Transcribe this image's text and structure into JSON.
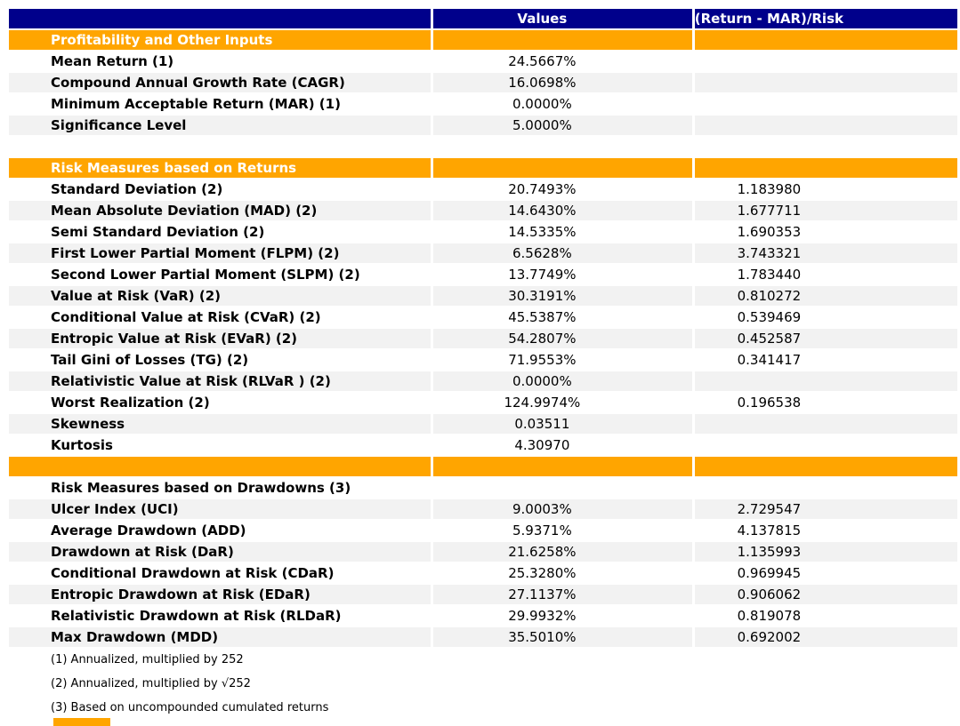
{
  "colors": {
    "header_bg": "#00008b",
    "header_text": "#ffffff",
    "section_bg": "#ffa500",
    "section_text": "#ffffff",
    "stripe_bg": "#f2f2f2",
    "text": "#000000",
    "page_bg": "#ffffff"
  },
  "chart_data": {
    "type": "table",
    "columns": [
      "",
      "Values",
      "(Return - MAR)/Risk"
    ],
    "rows": [
      {
        "kind": "section",
        "shade": "section",
        "label": "Profitability and Other Inputs",
        "value": "",
        "ratio": ""
      },
      {
        "kind": "data",
        "shade": "white",
        "label": "Mean Return (1)",
        "value": "24.5667%",
        "ratio": ""
      },
      {
        "kind": "data",
        "shade": "gray",
        "label": "Compound Annual Growth Rate (CAGR)",
        "value": "16.0698%",
        "ratio": ""
      },
      {
        "kind": "data",
        "shade": "white",
        "label": "Minimum Acceptable Return (MAR) (1)",
        "value": "0.0000%",
        "ratio": ""
      },
      {
        "kind": "data",
        "shade": "gray",
        "label": "Significance Level",
        "value": "5.0000%",
        "ratio": ""
      },
      {
        "kind": "spacer",
        "shade": "spacer",
        "label": "",
        "value": "",
        "ratio": ""
      },
      {
        "kind": "section",
        "shade": "section",
        "label": "Risk Measures based on Returns",
        "value": "",
        "ratio": ""
      },
      {
        "kind": "data",
        "shade": "white",
        "label": "Standard Deviation (2)",
        "value": "20.7493%",
        "ratio": "1.183980"
      },
      {
        "kind": "data",
        "shade": "gray",
        "label": "Mean Absolute Deviation (MAD) (2)",
        "value": "14.6430%",
        "ratio": "1.677711"
      },
      {
        "kind": "data",
        "shade": "white",
        "label": "Semi Standard Deviation (2)",
        "value": "14.5335%",
        "ratio": "1.690353"
      },
      {
        "kind": "data",
        "shade": "gray",
        "label": "First Lower Partial Moment (FLPM) (2)",
        "value": "6.5628%",
        "ratio": "3.743321"
      },
      {
        "kind": "data",
        "shade": "white",
        "label": "Second Lower Partial Moment (SLPM) (2)",
        "value": "13.7749%",
        "ratio": "1.783440"
      },
      {
        "kind": "data",
        "shade": "gray",
        "label": "Value at Risk (VaR) (2)",
        "value": "30.3191%",
        "ratio": "0.810272"
      },
      {
        "kind": "data",
        "shade": "white",
        "label": "Conditional Value at Risk (CVaR) (2)",
        "value": "45.5387%",
        "ratio": "0.539469"
      },
      {
        "kind": "data",
        "shade": "gray",
        "label": "Entropic Value at Risk (EVaR) (2)",
        "value": "54.2807%",
        "ratio": "0.452587"
      },
      {
        "kind": "data",
        "shade": "white",
        "label": "Tail Gini of Losses (TG) (2)",
        "value": "71.9553%",
        "ratio": "0.341417"
      },
      {
        "kind": "data",
        "shade": "gray",
        "label": "Relativistic Value at Risk (RLVaR ) (2)",
        "value": "0.0000%",
        "ratio": ""
      },
      {
        "kind": "data",
        "shade": "white",
        "label": "Worst Realization (2)",
        "value": "124.9974%",
        "ratio": "0.196538"
      },
      {
        "kind": "data",
        "shade": "gray",
        "label": "Skewness",
        "value": "0.03511",
        "ratio": ""
      },
      {
        "kind": "data",
        "shade": "white",
        "label": "Kurtosis",
        "value": "4.30970",
        "ratio": ""
      },
      {
        "kind": "section",
        "shade": "section",
        "label": "",
        "value": "",
        "ratio": ""
      },
      {
        "kind": "data",
        "shade": "white",
        "label": "Risk Measures based on Drawdowns (3)",
        "value": "",
        "ratio": ""
      },
      {
        "kind": "data",
        "shade": "gray",
        "label": "Ulcer Index (UCI)",
        "value": "9.0003%",
        "ratio": "2.729547"
      },
      {
        "kind": "data",
        "shade": "white",
        "label": "Average Drawdown (ADD)",
        "value": "5.9371%",
        "ratio": "4.137815"
      },
      {
        "kind": "data",
        "shade": "gray",
        "label": "Drawdown at Risk (DaR)",
        "value": "21.6258%",
        "ratio": "1.135993"
      },
      {
        "kind": "data",
        "shade": "white",
        "label": "Conditional Drawdown at Risk (CDaR)",
        "value": "25.3280%",
        "ratio": "0.969945"
      },
      {
        "kind": "data",
        "shade": "gray",
        "label": "Entropic Drawdown at Risk (EDaR)",
        "value": "27.1137%",
        "ratio": "0.906062"
      },
      {
        "kind": "data",
        "shade": "white",
        "label": "Relativistic Drawdown at Risk (RLDaR)",
        "value": "29.9932%",
        "ratio": "0.819078"
      },
      {
        "kind": "data",
        "shade": "gray",
        "label": "Max Drawdown (MDD)",
        "value": "35.5010%",
        "ratio": "0.692002"
      },
      {
        "kind": "footnote",
        "shade": "white",
        "label": "(1) Annualized, multiplied by 252",
        "value": "",
        "ratio": ""
      },
      {
        "kind": "footnote",
        "shade": "white",
        "label": "(2) Annualized, multiplied by √252",
        "value": "",
        "ratio": ""
      },
      {
        "kind": "footnote",
        "shade": "white",
        "label": "(3) Based on uncompounded cumulated returns",
        "value": "",
        "ratio": ""
      }
    ]
  },
  "cutoff_bar": {
    "present": true,
    "color": "#ffa500"
  }
}
